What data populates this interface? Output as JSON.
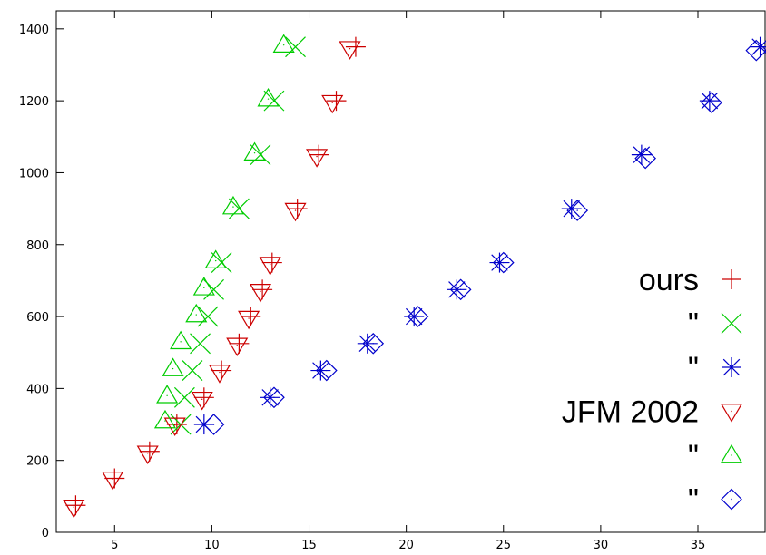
{
  "chart_data": {
    "type": "scatter",
    "title": "",
    "xlabel": "",
    "ylabel": "",
    "xlim": [
      2,
      38.5
    ],
    "ylim": [
      0,
      1450
    ],
    "x_ticks": [
      5,
      10,
      15,
      20,
      25,
      30,
      35
    ],
    "y_ticks": [
      0,
      200,
      400,
      600,
      800,
      1000,
      1200,
      1400
    ],
    "grid": false,
    "legend_position": "right",
    "series": [
      {
        "name": "ours",
        "marker": "plus",
        "color": "#cc0000",
        "x": [
          3.0,
          5.0,
          6.8,
          8.2,
          9.6,
          10.5,
          11.4,
          12.0,
          12.6,
          13.1,
          14.4,
          15.5,
          16.4,
          17.4
        ],
        "y": [
          75,
          150,
          225,
          300,
          375,
          450,
          525,
          600,
          675,
          750,
          900,
          1050,
          1200,
          1350
        ]
      },
      {
        "name": "\"",
        "marker": "x",
        "color": "#00cc00",
        "x": [
          8.4,
          8.6,
          9.0,
          9.4,
          9.8,
          10.1,
          10.5,
          11.4,
          12.5,
          13.2,
          14.3
        ],
        "y": [
          300,
          375,
          450,
          525,
          600,
          675,
          750,
          900,
          1050,
          1200,
          1350
        ]
      },
      {
        "name": "\"",
        "marker": "star",
        "color": "#0000cc",
        "x": [
          9.6,
          13.0,
          15.6,
          18.0,
          20.4,
          22.6,
          24.8,
          28.5,
          32.1,
          35.6,
          38.2
        ],
        "y": [
          300,
          375,
          450,
          525,
          600,
          675,
          750,
          900,
          1050,
          1200,
          1350
        ]
      },
      {
        "name": "JFM 2002",
        "marker": "triangle-down",
        "color": "#cc0000",
        "x": [
          2.9,
          4.9,
          6.7,
          8.1,
          9.5,
          10.4,
          11.3,
          11.9,
          12.5,
          13.0,
          14.3,
          15.4,
          16.2,
          17.1
        ],
        "y": [
          70,
          148,
          220,
          298,
          370,
          445,
          520,
          595,
          670,
          745,
          895,
          1045,
          1195,
          1345
        ]
      },
      {
        "name": "\"",
        "marker": "triangle-up",
        "color": "#00cc00",
        "x": [
          7.6,
          7.7,
          8.0,
          8.4,
          9.2,
          9.6,
          10.2,
          11.1,
          12.2,
          12.9,
          13.7
        ],
        "y": [
          310,
          380,
          455,
          530,
          605,
          680,
          755,
          905,
          1055,
          1205,
          1355
        ]
      },
      {
        "name": "\"",
        "marker": "diamond",
        "color": "#0000cc",
        "x": [
          10.1,
          13.2,
          15.9,
          18.3,
          20.6,
          22.8,
          25.0,
          28.8,
          32.3,
          35.7,
          38.0
        ],
        "y": [
          300,
          375,
          450,
          525,
          600,
          675,
          750,
          895,
          1040,
          1195,
          1340
        ]
      }
    ]
  }
}
